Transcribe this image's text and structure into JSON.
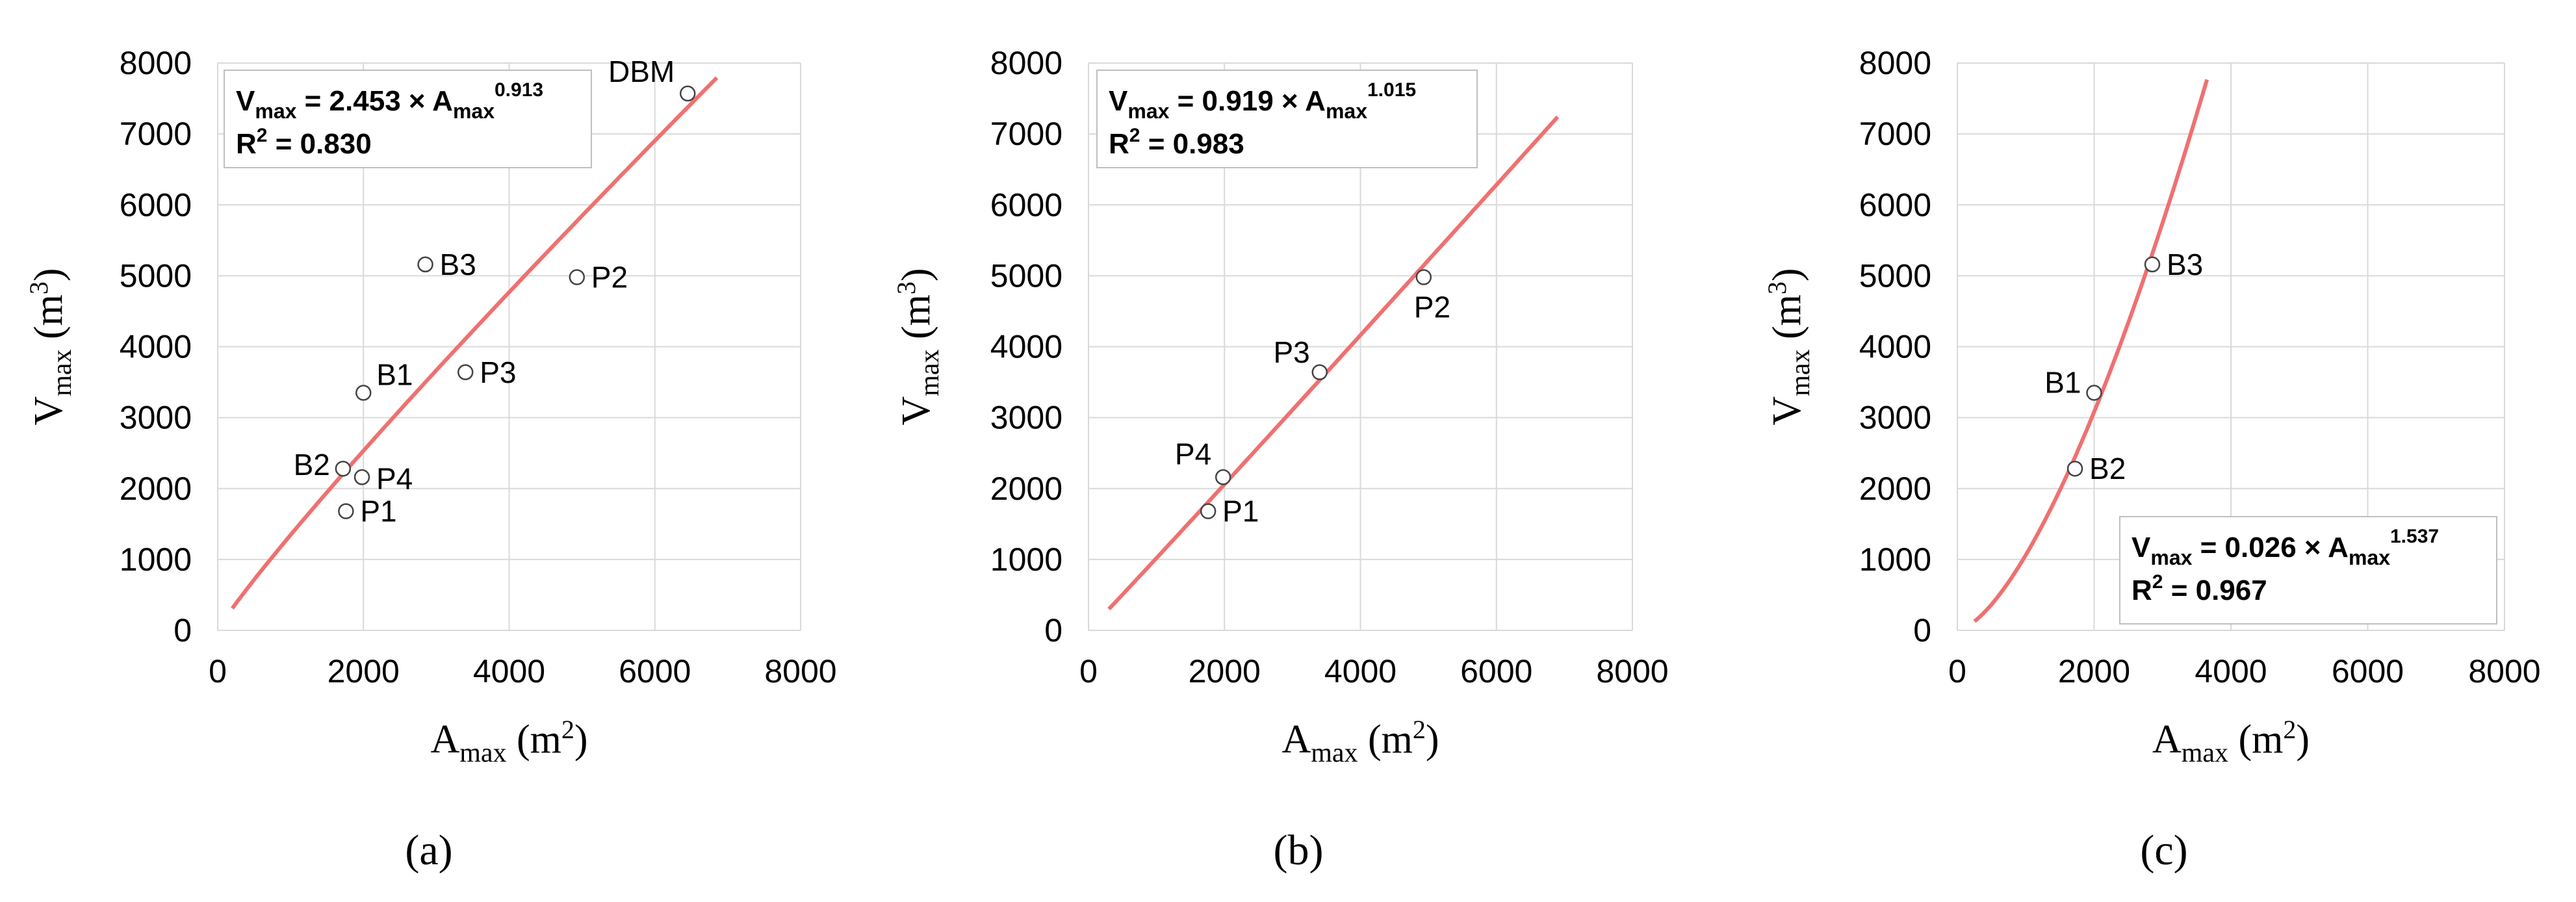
{
  "chart_data": [
    {
      "type": "scatter",
      "panel_label": "(a)",
      "xlabel": {
        "main": "A",
        "sub": "max",
        "unit_open": " (m",
        "unit_sup": "2",
        "unit_close": ")"
      },
      "ylabel": {
        "main": "V",
        "sub": "max",
        "unit_open": " (m",
        "unit_sup": "3",
        "unit_close": ")"
      },
      "xlim": [
        0,
        8000
      ],
      "ylim": [
        0,
        8000
      ],
      "x_ticks": [
        "0",
        "2000",
        "4000",
        "6000",
        "8000"
      ],
      "y_ticks": [
        "0",
        "1000",
        "2000",
        "3000",
        "4000",
        "5000",
        "6000",
        "7000",
        "8000"
      ],
      "grid": true,
      "points": [
        {
          "label": "DBM",
          "x": 6450,
          "y": 7570
        },
        {
          "label": "B3",
          "x": 2850,
          "y": 5160
        },
        {
          "label": "P2",
          "x": 4930,
          "y": 4980
        },
        {
          "label": "P3",
          "x": 3400,
          "y": 3640
        },
        {
          "label": "B1",
          "x": 2000,
          "y": 3350
        },
        {
          "label": "B2",
          "x": 1720,
          "y": 2280
        },
        {
          "label": "P4",
          "x": 1980,
          "y": 2160
        },
        {
          "label": "P1",
          "x": 1760,
          "y": 1680
        }
      ],
      "fit": {
        "a": 2.453,
        "b": 0.913,
        "x_range": [
          200,
          6850
        ],
        "eq_lhs": "V",
        "eq_lhs_sub": "max",
        "eq_mid": " = 2.453 × A",
        "eq_rhs_sub": "max",
        "eq_exp": "0.913",
        "r2_label": "R",
        "r2_sup": "2",
        "r2_value": " = 0.830",
        "box_position": "top-left"
      }
    },
    {
      "type": "scatter",
      "panel_label": "(b)",
      "xlabel": {
        "main": "A",
        "sub": "max",
        "unit_open": " (m",
        "unit_sup": "2",
        "unit_close": ")"
      },
      "ylabel": {
        "main": "V",
        "sub": "max",
        "unit_open": " (m",
        "unit_sup": "3",
        "unit_close": ")"
      },
      "xlim": [
        0,
        8000
      ],
      "ylim": [
        0,
        8000
      ],
      "x_ticks": [
        "0",
        "2000",
        "4000",
        "6000",
        "8000"
      ],
      "y_ticks": [
        "0",
        "1000",
        "2000",
        "3000",
        "4000",
        "5000",
        "6000",
        "7000",
        "8000"
      ],
      "grid": true,
      "points": [
        {
          "label": "P2",
          "x": 4930,
          "y": 4980
        },
        {
          "label": "P3",
          "x": 3400,
          "y": 3640
        },
        {
          "label": "P4",
          "x": 1980,
          "y": 2160
        },
        {
          "label": "P1",
          "x": 1760,
          "y": 1680
        }
      ],
      "fit": {
        "a": 0.919,
        "b": 1.015,
        "x_range": [
          300,
          6900
        ],
        "eq_lhs": "V",
        "eq_lhs_sub": "max",
        "eq_mid": " = 0.919 × A",
        "eq_rhs_sub": "max",
        "eq_exp": "1.015",
        "r2_label": "R",
        "r2_sup": "2",
        "r2_value": " = 0.983",
        "box_position": "top-left"
      }
    },
    {
      "type": "scatter",
      "panel_label": "(c)",
      "xlabel": {
        "main": "A",
        "sub": "max",
        "unit_open": " (m",
        "unit_sup": "2",
        "unit_close": ")"
      },
      "ylabel": {
        "main": "V",
        "sub": "max",
        "unit_open": " (m",
        "unit_sup": "3",
        "unit_close": ")"
      },
      "xlim": [
        0,
        8000
      ],
      "ylim": [
        0,
        8000
      ],
      "x_ticks": [
        "0",
        "2000",
        "4000",
        "6000",
        "8000"
      ],
      "y_ticks": [
        "0",
        "1000",
        "2000",
        "3000",
        "4000",
        "5000",
        "6000",
        "7000",
        "8000"
      ],
      "grid": true,
      "points": [
        {
          "label": "B3",
          "x": 2850,
          "y": 5160
        },
        {
          "label": "B1",
          "x": 2000,
          "y": 3350
        },
        {
          "label": "B2",
          "x": 1720,
          "y": 2280
        }
      ],
      "fit": {
        "a": 0.026,
        "b": 1.537,
        "x_range": [
          250,
          3650
        ],
        "eq_lhs": "V",
        "eq_lhs_sub": "max",
        "eq_mid": " = 0.026 × A",
        "eq_rhs_sub": "max",
        "eq_exp": "1.537",
        "r2_label": "R",
        "r2_sup": "2",
        "r2_value": " = 0.967",
        "box_position": "bottom-right"
      }
    }
  ]
}
